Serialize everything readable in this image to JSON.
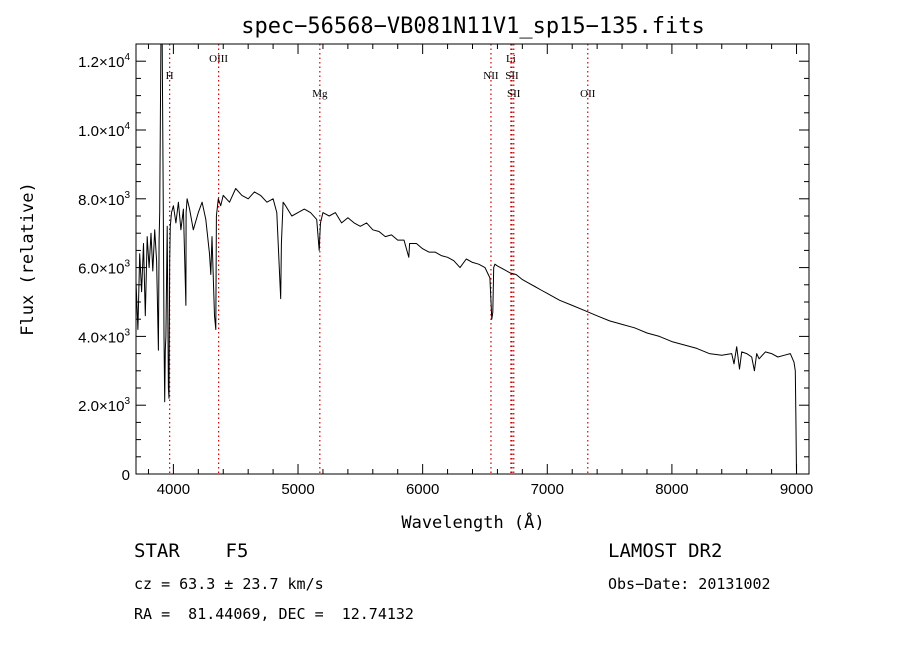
{
  "chart_data": {
    "type": "line",
    "title": "spec−56568−VB081N11V1_sp15−135.fits",
    "xlabel": "Wavelength (Å)",
    "ylabel": "Flux (relative)",
    "xlim": [
      3700,
      9100
    ],
    "ylim": [
      0,
      12500
    ],
    "x_ticks": [
      4000,
      5000,
      6000,
      7000,
      8000,
      9000
    ],
    "y_ticks": [
      {
        "value": 0,
        "mantissa": "0",
        "exponent": ""
      },
      {
        "value": 2000,
        "mantissa": "2.0×10",
        "exponent": "3"
      },
      {
        "value": 4000,
        "mantissa": "4.0×10",
        "exponent": "3"
      },
      {
        "value": 6000,
        "mantissa": "6.0×10",
        "exponent": "3"
      },
      {
        "value": 8000,
        "mantissa": "8.0×10",
        "exponent": "3"
      },
      {
        "value": 10000,
        "mantissa": "1.0×10",
        "exponent": "4"
      },
      {
        "value": 12000,
        "mantissa": "1.2×10",
        "exponent": "4"
      }
    ],
    "emission_lines": [
      {
        "label": "H",
        "wavelength": 3970,
        "color": "#cc0000",
        "label_level": 2
      },
      {
        "label": "OIII",
        "wavelength": 4363,
        "color": "#cc0000",
        "label_level": 1
      },
      {
        "label": "Mg",
        "wavelength": 5175,
        "color": "#cc0000",
        "label_level": 3
      },
      {
        "label": "NII",
        "wavelength": 6548,
        "color": "#cc0000",
        "label_level": 2
      },
      {
        "label": "Li",
        "wavelength": 6708,
        "color": "#cc0000",
        "label_level": 1
      },
      {
        "label": "SII",
        "wavelength": 6717,
        "color": "#cc0000",
        "label_level": 2
      },
      {
        "label": "SII",
        "wavelength": 6731,
        "color": "#cc0000",
        "label_level": 3
      },
      {
        "label": "OII",
        "wavelength": 7325,
        "color": "#cc0000",
        "label_level": 3
      }
    ],
    "series": [
      {
        "color": "#000000",
        "x": [
          3700,
          3715,
          3730,
          3745,
          3760,
          3775,
          3790,
          3805,
          3820,
          3835,
          3850,
          3865,
          3880,
          3885,
          3890,
          3900,
          3910,
          3920,
          3925,
          3930,
          3935,
          3940,
          3950,
          3960,
          3965,
          3970,
          3975,
          3985,
          4000,
          4020,
          4040,
          4060,
          4080,
          4100,
          4102,
          4110,
          4130,
          4160,
          4200,
          4230,
          4260,
          4290,
          4300,
          4310,
          4330,
          4340,
          4345,
          4360,
          4380,
          4400,
          4450,
          4500,
          4550,
          4600,
          4650,
          4700,
          4750,
          4800,
          4830,
          4855,
          4861,
          4867,
          4880,
          4900,
          4950,
          5000,
          5050,
          5100,
          5150,
          5170,
          5175,
          5180,
          5200,
          5250,
          5300,
          5350,
          5400,
          5450,
          5500,
          5550,
          5600,
          5650,
          5700,
          5750,
          5800,
          5850,
          5889,
          5895,
          5950,
          6000,
          6050,
          6100,
          6150,
          6200,
          6250,
          6300,
          6350,
          6400,
          6450,
          6500,
          6540,
          6555,
          6563,
          6570,
          6580,
          6600,
          6650,
          6700,
          6750,
          6800,
          6850,
          6900,
          6950,
          7000,
          7100,
          7200,
          7300,
          7400,
          7500,
          7600,
          7700,
          7800,
          7900,
          8000,
          8100,
          8200,
          8300,
          8400,
          8480,
          8498,
          8520,
          8542,
          8560,
          8600,
          8640,
          8662,
          8680,
          8700,
          8750,
          8800,
          8850,
          8900,
          8950,
          8980,
          8990,
          8995,
          9000
        ],
        "y": [
          5600,
          4200,
          6400,
          5300,
          6700,
          4600,
          6900,
          6000,
          7000,
          5900,
          7100,
          6200,
          3600,
          6800,
          7600,
          12500,
          12500,
          7200,
          4000,
          2100,
          3600,
          4000,
          7200,
          2500,
          2200,
          6200,
          7200,
          7600,
          7800,
          7300,
          7900,
          7100,
          7700,
          4900,
          7600,
          8000,
          7700,
          7100,
          7600,
          7900,
          7400,
          6400,
          5800,
          6900,
          4600,
          4200,
          7500,
          8000,
          7800,
          8100,
          7900,
          8300,
          8100,
          8000,
          8200,
          8100,
          7900,
          8000,
          7600,
          5600,
          5100,
          6700,
          7900,
          7800,
          7500,
          7600,
          7700,
          7600,
          7400,
          6500,
          6900,
          7300,
          7600,
          7500,
          7600,
          7300,
          7450,
          7300,
          7200,
          7300,
          7100,
          7050,
          6900,
          6950,
          6800,
          6800,
          6300,
          6700,
          6700,
          6550,
          6450,
          6450,
          6350,
          6300,
          6200,
          6000,
          6250,
          6150,
          6100,
          6000,
          5700,
          4500,
          4700,
          6000,
          6100,
          6050,
          5950,
          5850,
          5800,
          5650,
          5550,
          5450,
          5350,
          5250,
          5050,
          4900,
          4750,
          4600,
          4450,
          4350,
          4250,
          4100,
          4000,
          3850,
          3750,
          3650,
          3500,
          3450,
          3500,
          3200,
          3700,
          3050,
          3550,
          3500,
          3400,
          3000,
          3500,
          3350,
          3550,
          3500,
          3400,
          3450,
          3500,
          3250,
          3000,
          1600,
          0
        ]
      }
    ]
  },
  "info": {
    "object_class": "STAR    F5",
    "cz_line": "cz = 63.3 ± 23.7 km/s",
    "radec_line": "RA =  81.44069, DEC =  12.74132",
    "survey": "LAMOST DR2",
    "obs_date": "Obs−Date: 20131002"
  }
}
